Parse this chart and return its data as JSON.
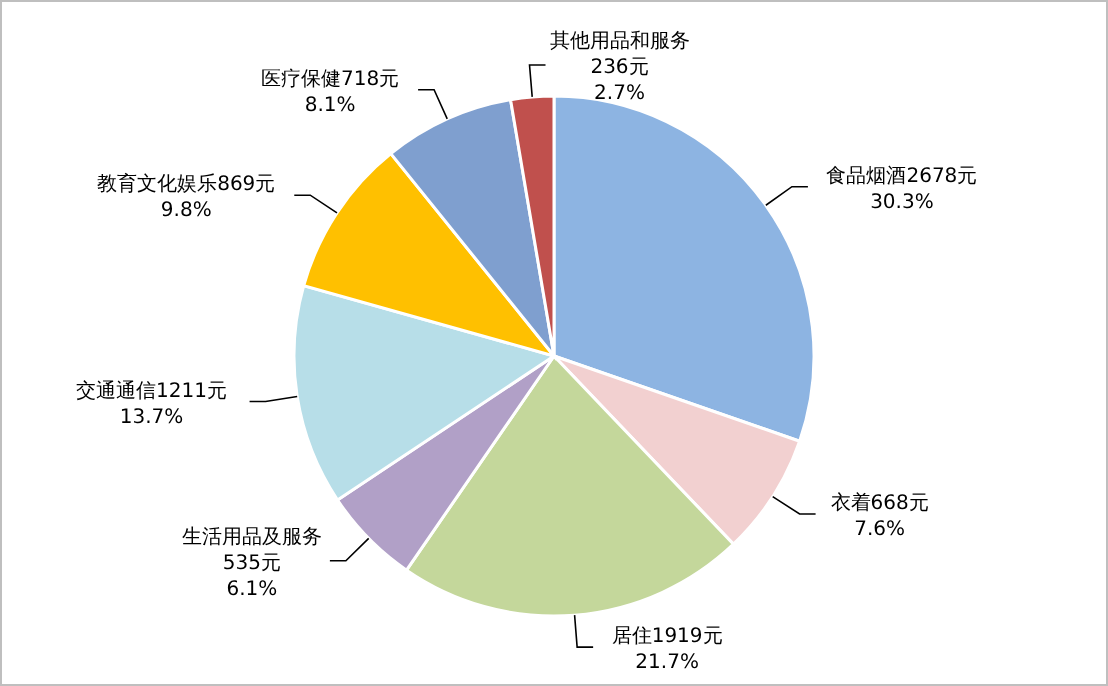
{
  "chart_data": {
    "type": "pie",
    "categories": [
      "食品烟酒",
      "衣着",
      "居住",
      "生活用品及服务",
      "交通通信",
      "教育文化娱乐",
      "医疗保健",
      "其他用品和服务"
    ],
    "values": [
      2678,
      668,
      1919,
      535,
      1211,
      869,
      718,
      236
    ],
    "value_labels": [
      "2678元\n30.3%",
      "668元\n7.6%",
      "1919元\n21.7%",
      "535元\n6.1%",
      "1211元\n13.7%",
      "869元\n9.8%",
      "718元\n8.1%",
      "236元\n2.7%"
    ],
    "colors": [
      "#8db4e2",
      "#f2d0d0",
      "#c4d79b",
      "#b1a0c7",
      "#b7dee8",
      "#ffc000",
      "#7f9fcf",
      "#c0504d"
    ]
  }
}
